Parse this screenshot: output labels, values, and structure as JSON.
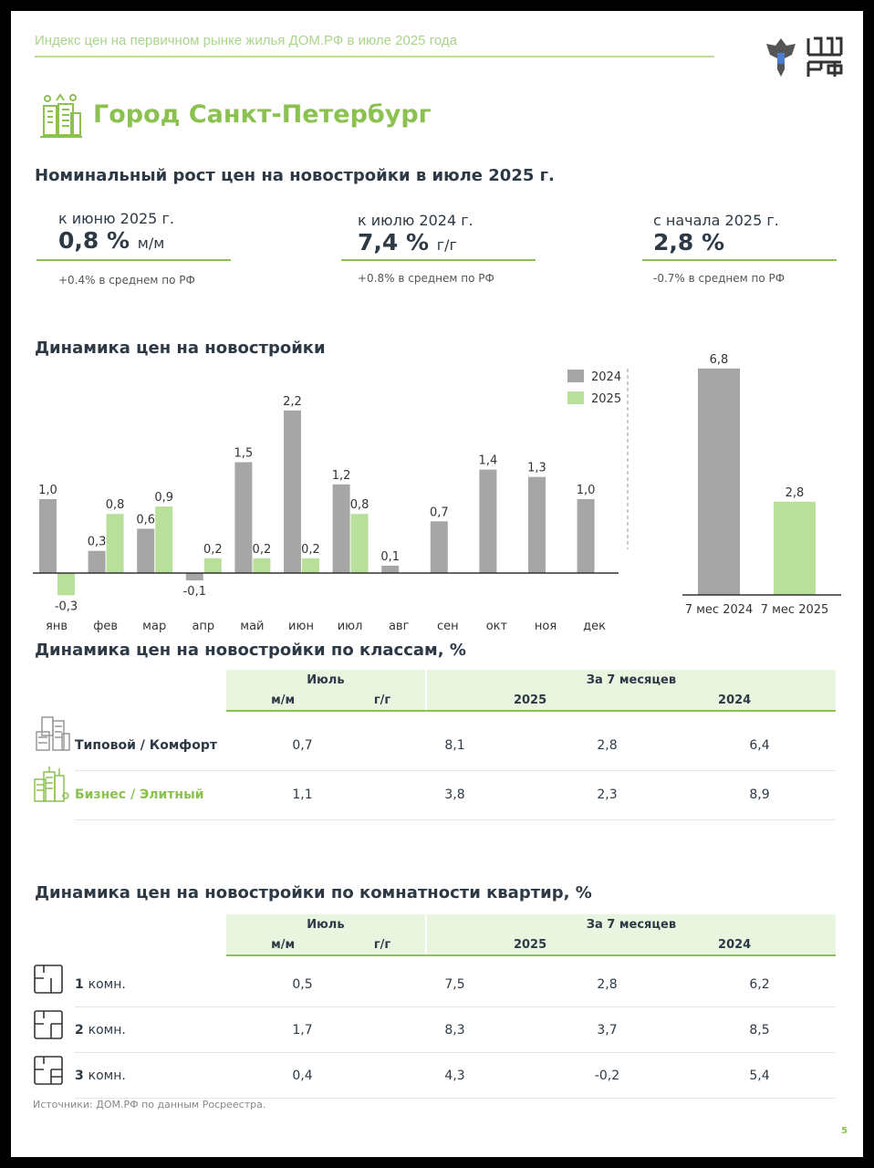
{
  "header": {
    "title": "Индекс цен на первичном рынке жилья ДОМ.РФ в июле 2025 года",
    "logo_text": "ДОМ РФ"
  },
  "city": "Город Санкт-Петербург",
  "kpi_title": "Номинальный рост цен на новостройки в июле 2025 г.",
  "kpis": [
    {
      "label": "к июню 2025 г.",
      "value": "0,8 %",
      "unit": "м/м",
      "note": "+0.4% в среднем по РФ"
    },
    {
      "label": "к июлю 2024 г.",
      "value": "7,4 %",
      "unit": "г/г",
      "note": "+0.8% в среднем по РФ"
    },
    {
      "label": "с начала 2025 г.",
      "value": "2,8 %",
      "unit": "",
      "note": "-0.7% в среднем по РФ"
    }
  ],
  "chart_title": "Динамика цен на новостройки",
  "chart_data": [
    {
      "type": "bar",
      "categories": [
        "янв",
        "фев",
        "мар",
        "апр",
        "май",
        "июн",
        "июл",
        "авг",
        "сен",
        "окт",
        "ноя",
        "дек"
      ],
      "series": [
        {
          "name": "2024",
          "color": "#a6a6a6",
          "values": [
            1.0,
            0.3,
            0.6,
            -0.1,
            1.5,
            2.2,
            1.2,
            0.1,
            0.7,
            1.4,
            1.3,
            1.0
          ]
        },
        {
          "name": "2025",
          "color": "#b9e09a",
          "values": [
            -0.3,
            0.8,
            0.9,
            0.2,
            0.2,
            0.2,
            0.8,
            null,
            null,
            null,
            null,
            null
          ]
        }
      ],
      "data_labels": [
        [
          "1,0",
          "0,3",
          "0,6",
          "-0,1",
          "1,5",
          "2,2",
          "1,2",
          "0,1",
          "0,7",
          "1,4",
          "1,3",
          "1,0"
        ],
        [
          "-0,3",
          "0,8",
          "0,9",
          "0,2",
          "0,2",
          "0,2",
          "0,8"
        ]
      ],
      "legend": "top-right"
    },
    {
      "type": "bar",
      "categories": [
        "7 мес 2024",
        "7 мес 2025"
      ],
      "values": [
        6.8,
        2.8
      ],
      "data_labels": [
        "6,8",
        "2,8"
      ],
      "colors": [
        "#a6a6a6",
        "#b9e09a"
      ]
    }
  ],
  "class_table": {
    "title": "Динамика цен на новостройки по классам, %",
    "group1": "Июль",
    "group2": "За 7 месяцев",
    "cols": [
      "м/м",
      "г/г",
      "2025",
      "2024"
    ],
    "rows": [
      {
        "label": "Типовой / Комфорт",
        "values": [
          "0,7",
          "8,1",
          "2,8",
          "6,4"
        ]
      },
      {
        "label": "Бизнес / Элитный",
        "values": [
          "1,1",
          "3,8",
          "2,3",
          "8,9"
        ]
      }
    ]
  },
  "room_table": {
    "title": "Динамика цен на новостройки по комнатности квартир, %",
    "group1": "Июль",
    "group2": "За 7 месяцев",
    "cols": [
      "м/м",
      "г/г",
      "2025",
      "2024"
    ],
    "rows": [
      {
        "num": "1",
        "label": "комн.",
        "values": [
          "0,5",
          "7,5",
          "2,8",
          "6,2"
        ]
      },
      {
        "num": "2",
        "label": "комн.",
        "values": [
          "1,7",
          "8,3",
          "3,7",
          "8,5"
        ]
      },
      {
        "num": "3",
        "label": "комн.",
        "values": [
          "0,4",
          "4,3",
          "-0,2",
          "5,4"
        ]
      }
    ]
  },
  "source": "Источники: ДОМ.РФ по данным Росреестра.",
  "page_number": "5"
}
